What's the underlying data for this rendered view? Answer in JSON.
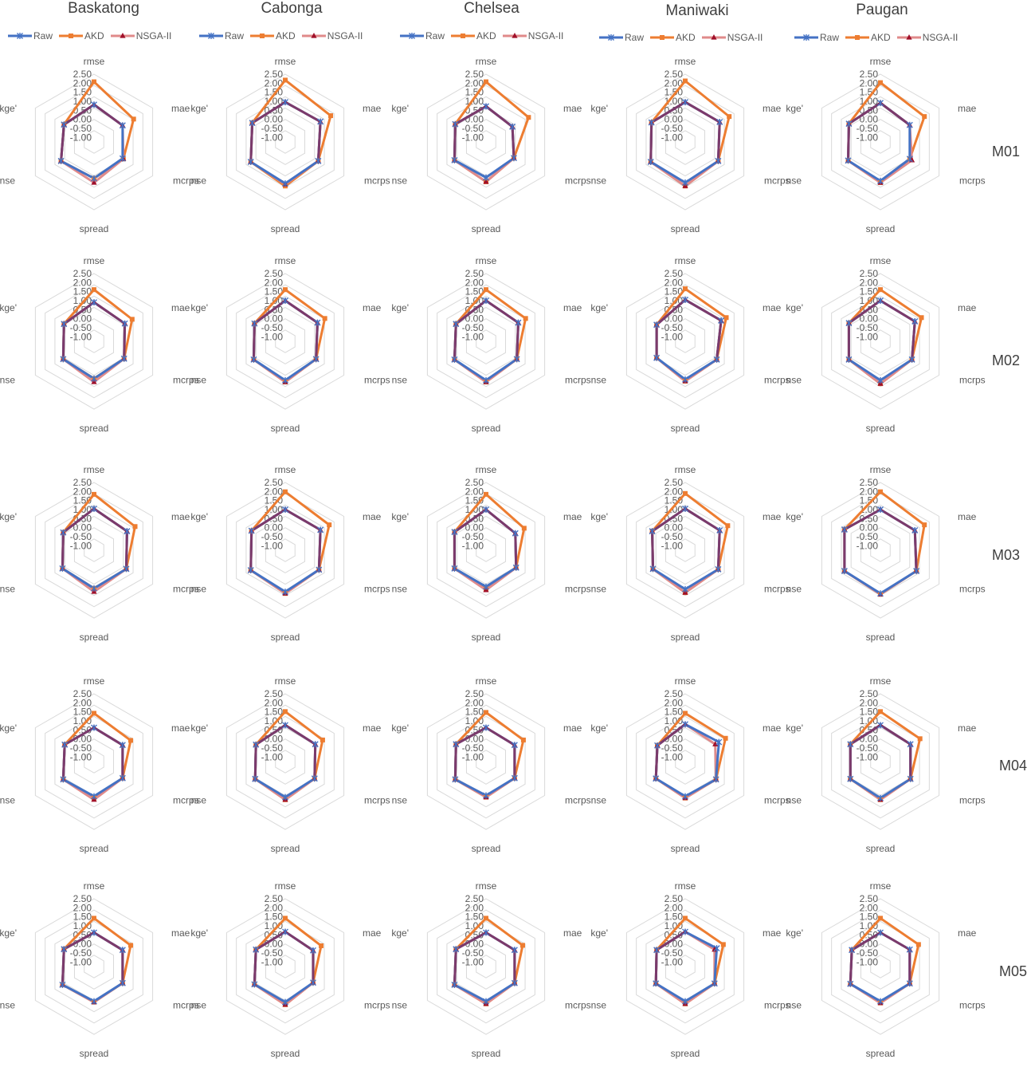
{
  "chart_data": {
    "type": "radar",
    "columns": [
      "Baskatong",
      "Cabonga",
      "Chelsea",
      "Maniwaki",
      "Paugan"
    ],
    "rows": [
      "M01",
      "M02",
      "M03",
      "M04",
      "M05"
    ],
    "axes": [
      "rmse",
      "mae",
      "mcrps",
      "spread",
      "nse",
      "kge'"
    ],
    "series_names": [
      "Raw",
      "AKD",
      "NSGA-II"
    ],
    "series_colors": {
      "Raw": "#4472c4",
      "AKD": "#ed7d31",
      "NSGA-II": "#c0504d"
    },
    "overlap_color": "#7b3a6b",
    "rlim": [
      -1.5,
      2.5
    ],
    "r_tick_labels": [
      "2.50",
      "2.00",
      "1.50",
      "1.00",
      "0.50",
      "0.00",
      "-0.50",
      "-1.00"
    ],
    "grid_rings": 6,
    "charts": [
      [
        {
          "Raw": [
            0.7,
            0.45,
            0.45,
            0.65,
            0.75,
            0.55
          ],
          "AKD": [
            2.05,
            1.2,
            0.5,
            0.65,
            0.75,
            0.55
          ],
          "NSGA-II": [
            0.7,
            0.45,
            0.5,
            0.9,
            0.75,
            0.55
          ]
        },
        {
          "Raw": [
            0.85,
            0.9,
            0.75,
            0.95,
            0.85,
            0.75
          ],
          "AKD": [
            2.15,
            1.6,
            0.75,
            1.1,
            0.85,
            0.75
          ],
          "NSGA-II": [
            0.85,
            0.9,
            0.75,
            1.0,
            0.85,
            0.75
          ]
        },
        {
          "Raw": [
            0.6,
            0.3,
            0.4,
            0.6,
            0.65,
            0.6
          ],
          "AKD": [
            2.05,
            1.4,
            0.4,
            0.85,
            0.65,
            0.6
          ],
          "NSGA-II": [
            0.6,
            0.3,
            0.4,
            0.85,
            0.65,
            0.6
          ]
        },
        {
          "Raw": [
            0.85,
            0.85,
            0.75,
            0.9,
            0.85,
            0.8
          ],
          "AKD": [
            2.1,
            1.5,
            0.75,
            1.1,
            0.85,
            0.8
          ],
          "NSGA-II": [
            0.85,
            0.85,
            0.75,
            1.1,
            0.85,
            0.8
          ]
        },
        {
          "Raw": [
            0.8,
            0.5,
            0.5,
            0.8,
            0.7,
            0.65
          ],
          "AKD": [
            2.0,
            1.5,
            0.5,
            0.9,
            0.7,
            0.65
          ],
          "NSGA-II": [
            0.8,
            0.5,
            0.65,
            0.9,
            0.7,
            0.65
          ]
        }
      ],
      [
        {
          "Raw": [
            0.8,
            0.6,
            0.55,
            0.7,
            0.6,
            0.55
          ],
          "AKD": [
            1.55,
            1.1,
            0.55,
            0.7,
            0.6,
            0.55
          ],
          "NSGA-II": [
            0.8,
            0.6,
            0.55,
            0.9,
            0.6,
            0.55
          ]
        },
        {
          "Raw": [
            0.9,
            0.7,
            0.6,
            0.8,
            0.65,
            0.6
          ],
          "AKD": [
            1.55,
            1.2,
            0.6,
            0.9,
            0.65,
            0.6
          ],
          "NSGA-II": [
            0.9,
            0.7,
            0.6,
            0.9,
            0.65,
            0.6
          ]
        },
        {
          "Raw": [
            0.9,
            0.7,
            0.6,
            0.8,
            0.65,
            0.55
          ],
          "AKD": [
            1.55,
            1.2,
            0.6,
            0.9,
            0.65,
            0.55
          ],
          "NSGA-II": [
            0.9,
            0.7,
            0.6,
            0.9,
            0.65,
            0.55
          ]
        },
        {
          "Raw": [
            0.95,
            0.95,
            0.65,
            0.75,
            0.45,
            0.45
          ],
          "AKD": [
            1.6,
            1.3,
            0.65,
            0.85,
            0.45,
            0.45
          ],
          "NSGA-II": [
            0.95,
            0.95,
            0.65,
            0.85,
            0.45,
            0.45
          ]
        },
        {
          "Raw": [
            0.9,
            0.85,
            0.65,
            0.8,
            0.65,
            0.65
          ],
          "AKD": [
            1.55,
            1.3,
            0.65,
            1.0,
            0.65,
            0.65
          ],
          "NSGA-II": [
            0.9,
            0.85,
            0.65,
            1.0,
            0.65,
            0.65
          ]
        }
      ],
      [
        {
          "Raw": [
            0.95,
            0.75,
            0.7,
            0.75,
            0.65,
            0.6
          ],
          "AKD": [
            1.8,
            1.3,
            0.7,
            0.75,
            0.65,
            0.6
          ],
          "NSGA-II": [
            0.95,
            0.75,
            0.7,
            0.95,
            0.65,
            0.6
          ]
        },
        {
          "Raw": [
            0.9,
            0.9,
            0.8,
            0.95,
            0.85,
            0.8
          ],
          "AKD": [
            1.95,
            1.5,
            0.8,
            1.05,
            0.85,
            0.8
          ],
          "NSGA-II": [
            0.9,
            0.9,
            0.8,
            1.05,
            0.85,
            0.8
          ]
        },
        {
          "Raw": [
            0.9,
            0.5,
            0.55,
            0.65,
            0.65,
            0.65
          ],
          "AKD": [
            1.8,
            1.1,
            0.55,
            0.8,
            0.65,
            0.65
          ],
          "NSGA-II": [
            0.9,
            0.5,
            0.55,
            0.85,
            0.65,
            0.65
          ]
        },
        {
          "Raw": [
            0.95,
            0.85,
            0.75,
            0.8,
            0.7,
            0.75
          ],
          "AKD": [
            1.85,
            1.4,
            0.75,
            1.0,
            0.7,
            0.75
          ],
          "NSGA-II": [
            0.95,
            0.85,
            0.75,
            1.0,
            0.7,
            0.75
          ]
        },
        {
          "Raw": [
            0.9,
            0.85,
            0.95,
            1.05,
            0.95,
            0.95
          ],
          "AKD": [
            1.95,
            1.5,
            0.95,
            1.1,
            0.95,
            0.95
          ],
          "NSGA-II": [
            0.9,
            0.85,
            0.95,
            1.1,
            0.95,
            0.95
          ]
        }
      ],
      [
        {
          "Raw": [
            0.5,
            0.45,
            0.45,
            0.55,
            0.6,
            0.5
          ],
          "AKD": [
            1.35,
            1.0,
            0.45,
            0.65,
            0.6,
            0.5
          ],
          "NSGA-II": [
            0.5,
            0.45,
            0.45,
            0.75,
            0.6,
            0.5
          ]
        },
        {
          "Raw": [
            0.65,
            0.55,
            0.5,
            0.6,
            0.55,
            0.5
          ],
          "AKD": [
            1.45,
            1.05,
            0.5,
            0.75,
            0.55,
            0.5
          ],
          "NSGA-II": [
            0.65,
            0.55,
            0.5,
            0.75,
            0.55,
            0.5
          ]
        },
        {
          "Raw": [
            0.5,
            0.45,
            0.45,
            0.5,
            0.6,
            0.55
          ],
          "AKD": [
            1.4,
            1.05,
            0.45,
            0.6,
            0.6,
            0.55
          ],
          "NSGA-II": [
            0.5,
            0.45,
            0.45,
            0.6,
            0.6,
            0.55
          ]
        },
        {
          "Raw": [
            0.7,
            0.8,
            0.6,
            0.55,
            0.5,
            0.4
          ],
          "AKD": [
            1.35,
            1.25,
            0.6,
            0.65,
            0.5,
            0.4
          ],
          "NSGA-II": [
            0.7,
            0.55,
            0.6,
            0.65,
            0.5,
            0.4
          ]
        },
        {
          "Raw": [
            0.65,
            0.55,
            0.55,
            0.65,
            0.55,
            0.55
          ],
          "AKD": [
            1.45,
            1.2,
            0.55,
            0.75,
            0.55,
            0.55
          ],
          "NSGA-II": [
            0.65,
            0.55,
            0.55,
            0.75,
            0.55,
            0.55
          ]
        }
      ],
      [
        {
          "Raw": [
            0.5,
            0.45,
            0.45,
            0.55,
            0.65,
            0.55
          ],
          "AKD": [
            1.35,
            1.0,
            0.45,
            0.6,
            0.65,
            0.55
          ],
          "NSGA-II": [
            0.5,
            0.45,
            0.45,
            0.6,
            0.65,
            0.55
          ]
        },
        {
          "Raw": [
            0.55,
            0.4,
            0.4,
            0.6,
            0.6,
            0.5
          ],
          "AKD": [
            1.35,
            0.95,
            0.4,
            0.75,
            0.6,
            0.5
          ],
          "NSGA-II": [
            0.55,
            0.4,
            0.4,
            0.75,
            0.6,
            0.5
          ]
        },
        {
          "Raw": [
            0.5,
            0.45,
            0.45,
            0.55,
            0.65,
            0.55
          ],
          "AKD": [
            1.35,
            1.0,
            0.45,
            0.7,
            0.65,
            0.55
          ],
          "NSGA-II": [
            0.5,
            0.45,
            0.45,
            0.7,
            0.65,
            0.55
          ]
        },
        {
          "Raw": [
            0.55,
            0.65,
            0.5,
            0.55,
            0.5,
            0.45
          ],
          "AKD": [
            1.35,
            1.1,
            0.5,
            0.7,
            0.5,
            0.45
          ],
          "NSGA-II": [
            0.55,
            0.5,
            0.5,
            0.7,
            0.5,
            0.45
          ]
        },
        {
          "Raw": [
            0.5,
            0.5,
            0.5,
            0.55,
            0.55,
            0.45
          ],
          "AKD": [
            1.35,
            1.1,
            0.5,
            0.65,
            0.55,
            0.45
          ],
          "NSGA-II": [
            0.5,
            0.5,
            0.5,
            0.65,
            0.55,
            0.45
          ]
        }
      ]
    ]
  }
}
